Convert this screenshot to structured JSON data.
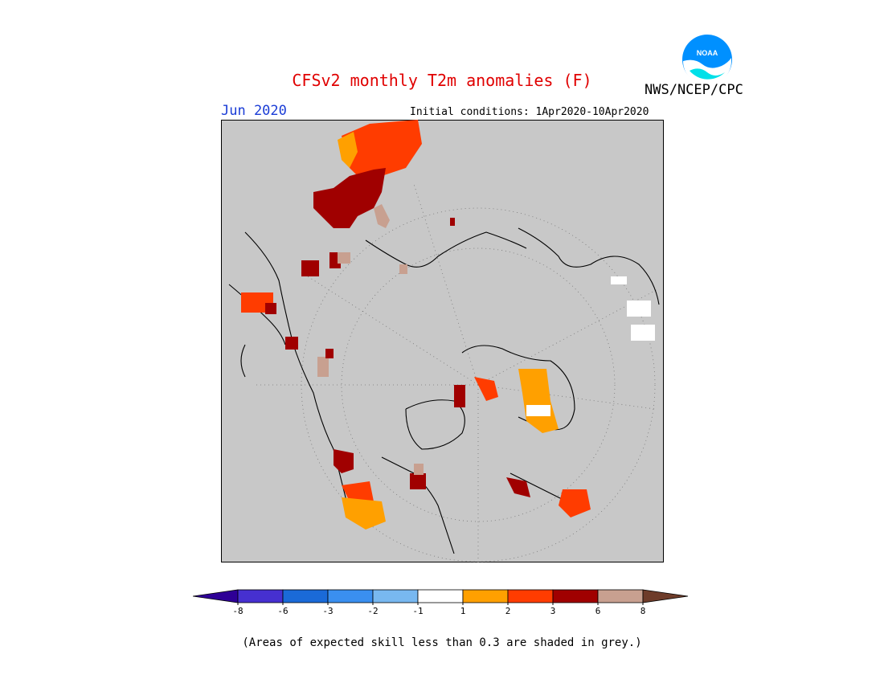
{
  "title": "CFSv2 monthly T2m anomalies (F)",
  "org": "NWS/NCEP/CPC",
  "logo_text": "NOAA",
  "month": "Jun 2020",
  "initial_conditions": "Initial conditions: 1Apr2020-10Apr2020",
  "note": "(Areas of expected skill less than 0.3 are shaded in grey.)",
  "colors": {
    "title": "#e00000",
    "month": "#1a3cd6",
    "map_background": "#c8c8c8"
  },
  "legend": {
    "bins": [
      {
        "color": "#2e0096"
      },
      {
        "color": "#4630d0"
      },
      {
        "color": "#1a6ad8"
      },
      {
        "color": "#3a8ff0"
      },
      {
        "color": "#78b8f0"
      },
      {
        "color": "#ffffff"
      },
      {
        "color": "#ffa000"
      },
      {
        "color": "#ff3c00"
      },
      {
        "color": "#a00000"
      },
      {
        "color": "#c8a090"
      },
      {
        "color": "#6e3c2a"
      }
    ],
    "ticks": [
      "-8",
      "-6",
      "-3",
      "-2",
      "-1",
      "1",
      "2",
      "3",
      "6",
      "8"
    ]
  }
}
